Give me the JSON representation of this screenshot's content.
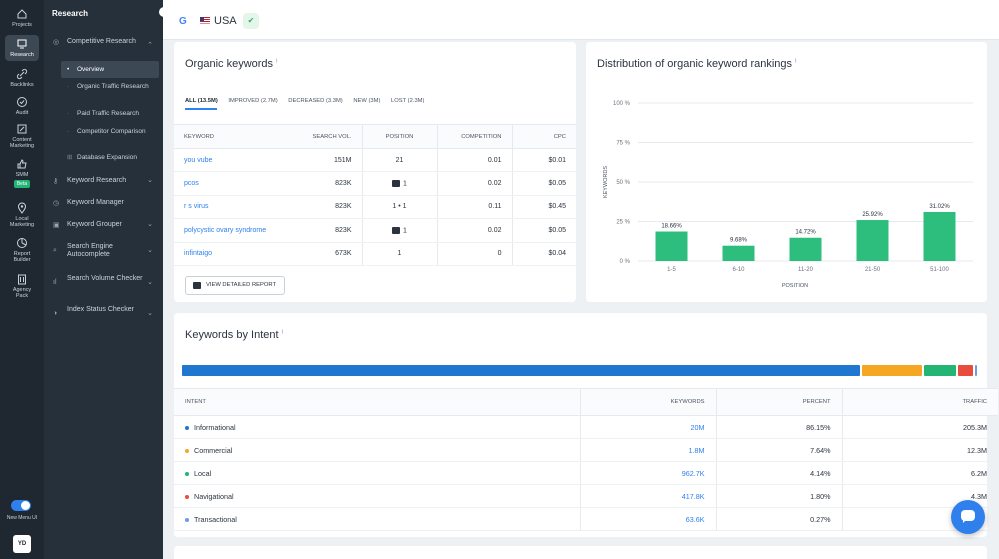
{
  "rail": {
    "items": [
      {
        "label": "Projects",
        "icon": "home-icon"
      },
      {
        "label": "Research",
        "icon": "research-icon"
      },
      {
        "label": "Backlinks",
        "icon": "link-icon"
      },
      {
        "label": "Audit",
        "icon": "check-circle-icon"
      },
      {
        "label": "Content Marketing",
        "icon": "edit-icon"
      },
      {
        "label": "SMM",
        "icon": "thumbs-up-icon",
        "badge": "Beta"
      },
      {
        "label": "Local Marketing",
        "icon": "map-pin-icon"
      },
      {
        "label": "Report Builder",
        "icon": "chart-icon"
      },
      {
        "label": "Agency Pack",
        "icon": "building-icon"
      }
    ],
    "toggle_label": "New Menu UI",
    "avatar": "YD"
  },
  "sidebar": {
    "title": "Research",
    "items": [
      {
        "label": "Competitive Research",
        "expanded": true
      },
      {
        "label": "Keyword Research"
      },
      {
        "label": "Keyword Manager"
      },
      {
        "label": "Keyword Grouper"
      },
      {
        "label": "Search Engine Autocomplete"
      },
      {
        "label": "Search Volume Checker"
      },
      {
        "label": "Index Status Checker"
      }
    ],
    "subitems": [
      {
        "label": "Overview",
        "active": true
      },
      {
        "label": "Organic Traffic Research"
      },
      {
        "label": "Paid Traffic Research"
      },
      {
        "label": "Competitor Comparison"
      },
      {
        "label": "Database Expansion"
      }
    ]
  },
  "topbar": {
    "engine": "G",
    "country": "USA"
  },
  "organic": {
    "title": "Organic keywords",
    "info": "i",
    "tabs": [
      "ALL (13.5M)",
      "IMPROVED (2.7M)",
      "DECREASED (3.3M)",
      "NEW (3M)",
      "LOST (2.3M)"
    ],
    "columns": [
      "KEYWORD",
      "SEARCH VOL.",
      "POSITION",
      "COMPETITION",
      "CPC"
    ],
    "rows": [
      {
        "keyword": "you vube",
        "volume": "151M",
        "position": "21",
        "competition": "0.01",
        "cpc": "$0.01",
        "feature": ""
      },
      {
        "keyword": "pcos",
        "volume": "823K",
        "position": "1",
        "competition": "0.02",
        "cpc": "$0.05",
        "feature": "list"
      },
      {
        "keyword": "r s virus",
        "volume": "823K",
        "position": "1 • 1",
        "competition": "0.11",
        "cpc": "$0.45",
        "feature": ""
      },
      {
        "keyword": "polycystic ovary syndrome",
        "volume": "823K",
        "position": "1",
        "competition": "0.02",
        "cpc": "$0.05",
        "feature": "image"
      },
      {
        "keyword": "infintaigo",
        "volume": "673K",
        "position": "1",
        "competition": "0",
        "cpc": "$0.04",
        "feature": ""
      }
    ],
    "button_label": "VIEW DETAILED REPORT"
  },
  "distribution": {
    "title": "Distribution of organic keyword rankings",
    "info": "i"
  },
  "chart_data": {
    "type": "bar",
    "categories": [
      "1-5",
      "6-10",
      "11-20",
      "21-50",
      "51-100"
    ],
    "values": [
      18.66,
      9.68,
      14.72,
      25.92,
      31.02
    ],
    "value_labels": [
      "18.66%",
      "9.68%",
      "14.72%",
      "25.92%",
      "31.02%"
    ],
    "ytick_labels": [
      "100 %",
      "75 %",
      "50 %",
      "25 %",
      "0 %"
    ],
    "yticks": [
      100,
      75,
      50,
      25,
      0
    ],
    "title": "",
    "xlabel": "POSITION",
    "ylabel": "KEYWORDS",
    "ylim": [
      0,
      100
    ],
    "grid": true,
    "color": "#2dbe7e"
  },
  "intent": {
    "title": "Keywords by Intent",
    "info": "i",
    "segments": [
      {
        "name": "Informational",
        "percent": 86.15,
        "color": "#1f77d0"
      },
      {
        "name": "Commercial",
        "percent": 7.64,
        "color": "#f5a623"
      },
      {
        "name": "Local",
        "percent": 4.14,
        "color": "#22b573"
      },
      {
        "name": "Navigational",
        "percent": 1.8,
        "color": "#e74c3c"
      },
      {
        "name": "Transactional",
        "percent": 0.27,
        "color": "#6c9be0"
      }
    ],
    "columns": [
      "INTENT",
      "KEYWORDS",
      "PERCENT",
      "TRAFFIC"
    ],
    "rows": [
      {
        "intent": "Informational",
        "keywords": "20M",
        "percent": "86.15%",
        "traffic": "205.3M",
        "color": "#1f77d0"
      },
      {
        "intent": "Commercial",
        "keywords": "1.8M",
        "percent": "7.64%",
        "traffic": "12.3M",
        "color": "#f5a623"
      },
      {
        "intent": "Local",
        "keywords": "962.7K",
        "percent": "4.14%",
        "traffic": "6.2M",
        "color": "#22b573"
      },
      {
        "intent": "Navigational",
        "keywords": "417.8K",
        "percent": "1.80%",
        "traffic": "4.3M",
        "color": "#e74c3c"
      },
      {
        "intent": "Transactional",
        "keywords": "63.6K",
        "percent": "0.27%",
        "traffic": "",
        "color": "#6c9be0"
      }
    ]
  }
}
